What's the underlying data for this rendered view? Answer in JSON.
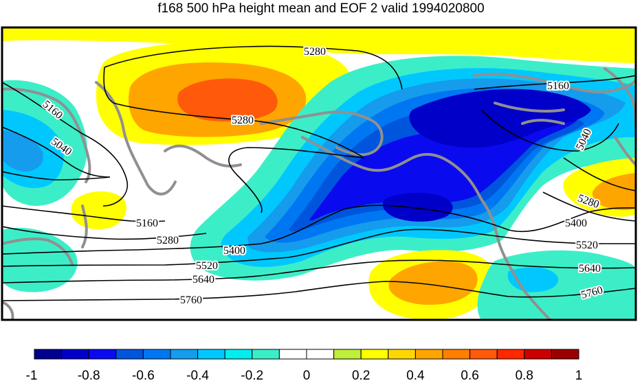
{
  "title": "f168 500 hPa height mean and EOF 2 valid 1994020800",
  "contour_labels": [
    "5040",
    "5160",
    "5280",
    "5400",
    "5520",
    "5640",
    "5760"
  ],
  "colorbar": {
    "ticks": [
      "-1",
      "-0.8",
      "-0.6",
      "-0.4",
      "-0.2",
      "0",
      "0.2",
      "0.4",
      "0.6",
      "0.8",
      "1"
    ],
    "colors": [
      "#00008f",
      "#0000c8",
      "#0a0aee",
      "#0055dd",
      "#0077f2",
      "#159cec",
      "#00c8ff",
      "#00eeee",
      "#3ceec8",
      "#ffffff",
      "#ffffff",
      "#bfee3c",
      "#ffff00",
      "#ffd700",
      "#ffa500",
      "#ff7f00",
      "#ff5a0a",
      "#ff2800",
      "#cc0000",
      "#9b0000"
    ]
  },
  "colors": {
    "frame": "#000000",
    "coastline": "#909090",
    "contour": "#000000"
  }
}
